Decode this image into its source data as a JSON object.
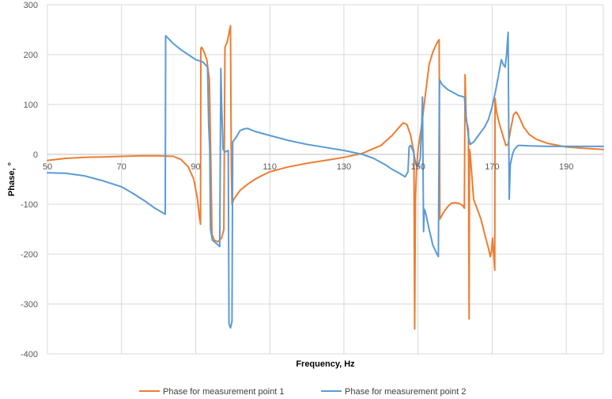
{
  "chart_data": {
    "type": "line",
    "title": "",
    "xlabel": "Frequency, Hz",
    "ylabel": "Phase, °",
    "xlim": [
      50,
      200
    ],
    "ylim": [
      -400,
      300
    ],
    "x_ticks": [
      50,
      70,
      90,
      110,
      130,
      150,
      170,
      190
    ],
    "y_ticks": [
      300,
      200,
      100,
      0,
      -100,
      -200,
      -300,
      -400
    ],
    "grid": true,
    "legend_position": "bottom",
    "series": [
      {
        "name": "Phase for measurement point 1",
        "color": "#ed7d31",
        "points": [
          [
            50,
            -12
          ],
          [
            55,
            -8
          ],
          [
            60,
            -6
          ],
          [
            65,
            -5
          ],
          [
            70,
            -4
          ],
          [
            75,
            -3
          ],
          [
            80,
            -3
          ],
          [
            84,
            -4
          ],
          [
            86,
            -10
          ],
          [
            88,
            -25
          ],
          [
            89.5,
            -50
          ],
          [
            90.5,
            -90
          ],
          [
            91,
            -125
          ],
          [
            91.3,
            -140
          ],
          [
            91.4,
            212
          ],
          [
            91.6,
            215
          ],
          [
            92.3,
            205
          ],
          [
            93,
            190
          ],
          [
            93.7,
            150
          ],
          [
            94.1,
            -20
          ],
          [
            94.4,
            -160
          ],
          [
            95,
            -172
          ],
          [
            96,
            -175
          ],
          [
            97,
            -168
          ],
          [
            97.6,
            -150
          ],
          [
            97.9,
            215
          ],
          [
            98.5,
            225
          ],
          [
            99.4,
            258
          ],
          [
            99.6,
            -20
          ],
          [
            99.8,
            -100
          ],
          [
            100.3,
            -90
          ],
          [
            102,
            -72
          ],
          [
            104,
            -60
          ],
          [
            106,
            -50
          ],
          [
            108,
            -42
          ],
          [
            110,
            -35
          ],
          [
            115,
            -25
          ],
          [
            120,
            -18
          ],
          [
            125,
            -12
          ],
          [
            130,
            -6
          ],
          [
            135,
            2
          ],
          [
            140,
            18
          ],
          [
            143,
            38
          ],
          [
            145,
            55
          ],
          [
            146,
            63
          ],
          [
            147,
            60
          ],
          [
            148,
            38
          ],
          [
            148.6,
            15
          ],
          [
            148.9,
            5
          ],
          [
            149.1,
            -350
          ],
          [
            149.3,
            -90
          ],
          [
            149.6,
            -30
          ],
          [
            150,
            10
          ],
          [
            151,
            60
          ],
          [
            152,
            120
          ],
          [
            153,
            180
          ],
          [
            154,
            205
          ],
          [
            155,
            222
          ],
          [
            155.7,
            230
          ],
          [
            155.9,
            -130
          ],
          [
            157,
            -115
          ],
          [
            158,
            -105
          ],
          [
            159,
            -98
          ],
          [
            160,
            -97
          ],
          [
            161,
            -98
          ],
          [
            162,
            -102
          ],
          [
            162.5,
            -108
          ],
          [
            162.7,
            160
          ],
          [
            163,
            70
          ],
          [
            163.6,
            50
          ],
          [
            163.8,
            -330
          ],
          [
            163.9,
            10
          ],
          [
            164.1,
            0
          ],
          [
            165,
            -90
          ],
          [
            166,
            -110
          ],
          [
            167,
            -130
          ],
          [
            168,
            -160
          ],
          [
            169,
            -188
          ],
          [
            169.5,
            -205
          ],
          [
            169.8,
            -195
          ],
          [
            170.1,
            -168
          ],
          [
            170.4,
            -200
          ],
          [
            170.7,
            -232
          ],
          [
            170.8,
            112
          ],
          [
            171.2,
            85
          ],
          [
            172,
            60
          ],
          [
            173,
            35
          ],
          [
            173.7,
            18
          ],
          [
            174.3,
            20
          ],
          [
            175,
            50
          ],
          [
            175.8,
            80
          ],
          [
            176.5,
            85
          ],
          [
            177.3,
            75
          ],
          [
            178.5,
            55
          ],
          [
            180,
            40
          ],
          [
            182,
            30
          ],
          [
            185,
            22
          ],
          [
            190,
            15
          ],
          [
            195,
            12
          ],
          [
            200,
            10
          ]
        ]
      },
      {
        "name": "Phase for measurement point 2",
        "color": "#5b9bd5",
        "points": [
          [
            50,
            -37
          ],
          [
            55,
            -38
          ],
          [
            60,
            -43
          ],
          [
            65,
            -53
          ],
          [
            70,
            -65
          ],
          [
            73,
            -78
          ],
          [
            76,
            -92
          ],
          [
            79,
            -108
          ],
          [
            81.8,
            -120
          ],
          [
            81.9,
            238
          ],
          [
            84,
            222
          ],
          [
            86,
            210
          ],
          [
            88,
            200
          ],
          [
            90,
            190
          ],
          [
            92,
            185
          ],
          [
            93.2,
            175
          ],
          [
            93.5,
            60
          ],
          [
            93.8,
            10
          ],
          [
            94,
            -150
          ],
          [
            94.5,
            -172
          ],
          [
            95.5,
            -178
          ],
          [
            96.5,
            -185
          ],
          [
            96.8,
            172
          ],
          [
            97,
            100
          ],
          [
            97.4,
            10
          ],
          [
            98,
            5
          ],
          [
            98.8,
            8
          ],
          [
            99,
            -340
          ],
          [
            99.4,
            -348
          ],
          [
            99.8,
            -335
          ],
          [
            100,
            25
          ],
          [
            101,
            35
          ],
          [
            102,
            48
          ],
          [
            103,
            51
          ],
          [
            104,
            52
          ],
          [
            106,
            46
          ],
          [
            110,
            38
          ],
          [
            115,
            28
          ],
          [
            120,
            20
          ],
          [
            125,
            14
          ],
          [
            130,
            8
          ],
          [
            135,
            0
          ],
          [
            138,
            -8
          ],
          [
            141,
            -20
          ],
          [
            143,
            -30
          ],
          [
            145,
            -38
          ],
          [
            146.5,
            -45
          ],
          [
            147.3,
            -35
          ],
          [
            147.6,
            15
          ],
          [
            148,
            18
          ],
          [
            148.8,
            5
          ],
          [
            149.4,
            -20
          ],
          [
            150,
            -25
          ],
          [
            150.6,
            -8
          ],
          [
            151,
            60
          ],
          [
            151.2,
            115
          ],
          [
            151.5,
            -155
          ],
          [
            151.7,
            -110
          ],
          [
            152,
            -115
          ],
          [
            153,
            -150
          ],
          [
            154,
            -182
          ],
          [
            155,
            -198
          ],
          [
            155.5,
            -205
          ],
          [
            155.8,
            150
          ],
          [
            156.5,
            140
          ],
          [
            158,
            130
          ],
          [
            160,
            122
          ],
          [
            161,
            118
          ],
          [
            162.5,
            115
          ],
          [
            163,
            75
          ],
          [
            163.6,
            35
          ],
          [
            164.1,
            20
          ],
          [
            165,
            25
          ],
          [
            166,
            35
          ],
          [
            167,
            45
          ],
          [
            168,
            55
          ],
          [
            169,
            70
          ],
          [
            170,
            95
          ],
          [
            171,
            130
          ],
          [
            172,
            170
          ],
          [
            172.5,
            190
          ],
          [
            173,
            180
          ],
          [
            173.5,
            175
          ],
          [
            173.9,
            200
          ],
          [
            174.3,
            245
          ],
          [
            174.6,
            -90
          ],
          [
            174.9,
            -20
          ],
          [
            175.5,
            0
          ],
          [
            176,
            10
          ],
          [
            177,
            18
          ],
          [
            178,
            18
          ],
          [
            180,
            17
          ],
          [
            185,
            16
          ],
          [
            190,
            16
          ],
          [
            195,
            16
          ],
          [
            200,
            16
          ]
        ]
      }
    ]
  }
}
